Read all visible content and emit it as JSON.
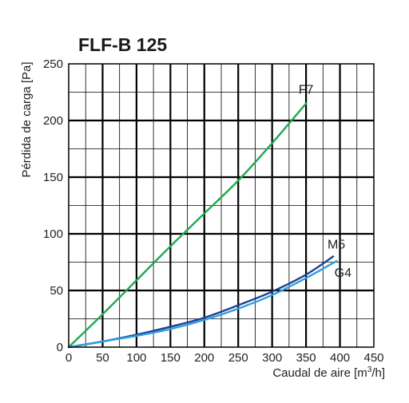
{
  "chart_data": {
    "type": "line",
    "title": "FLF-B 125",
    "xlabel": "Caudal de aire [m",
    "xlabel_sup": "3",
    "xlabel_tail": "/h]",
    "ylabel": "Pérdida de carga [Pa]",
    "xlim": [
      0,
      450
    ],
    "ylim": [
      0,
      250
    ],
    "x_ticks": [
      0,
      50,
      100,
      150,
      200,
      250,
      300,
      350,
      400,
      450
    ],
    "y_ticks": [
      0,
      50,
      100,
      150,
      200,
      250
    ],
    "grid": true,
    "series": [
      {
        "name": "F7",
        "color": "#1faa4f",
        "x": [
          0,
          50,
          100,
          150,
          200,
          250,
          300,
          350
        ],
        "y": [
          0,
          29,
          59,
          89,
          118,
          147,
          180,
          215
        ]
      },
      {
        "name": "M5",
        "color": "#1f3f8f",
        "x": [
          0,
          50,
          100,
          150,
          200,
          250,
          300,
          350,
          390
        ],
        "y": [
          0,
          5,
          11,
          18,
          26,
          37,
          49,
          64,
          80
        ]
      },
      {
        "name": "G4",
        "color": "#2f9fdf",
        "x": [
          0,
          50,
          100,
          150,
          200,
          250,
          300,
          350,
          395
        ],
        "y": [
          0,
          5,
          10,
          16,
          24,
          34,
          46,
          61,
          76
        ]
      }
    ]
  }
}
